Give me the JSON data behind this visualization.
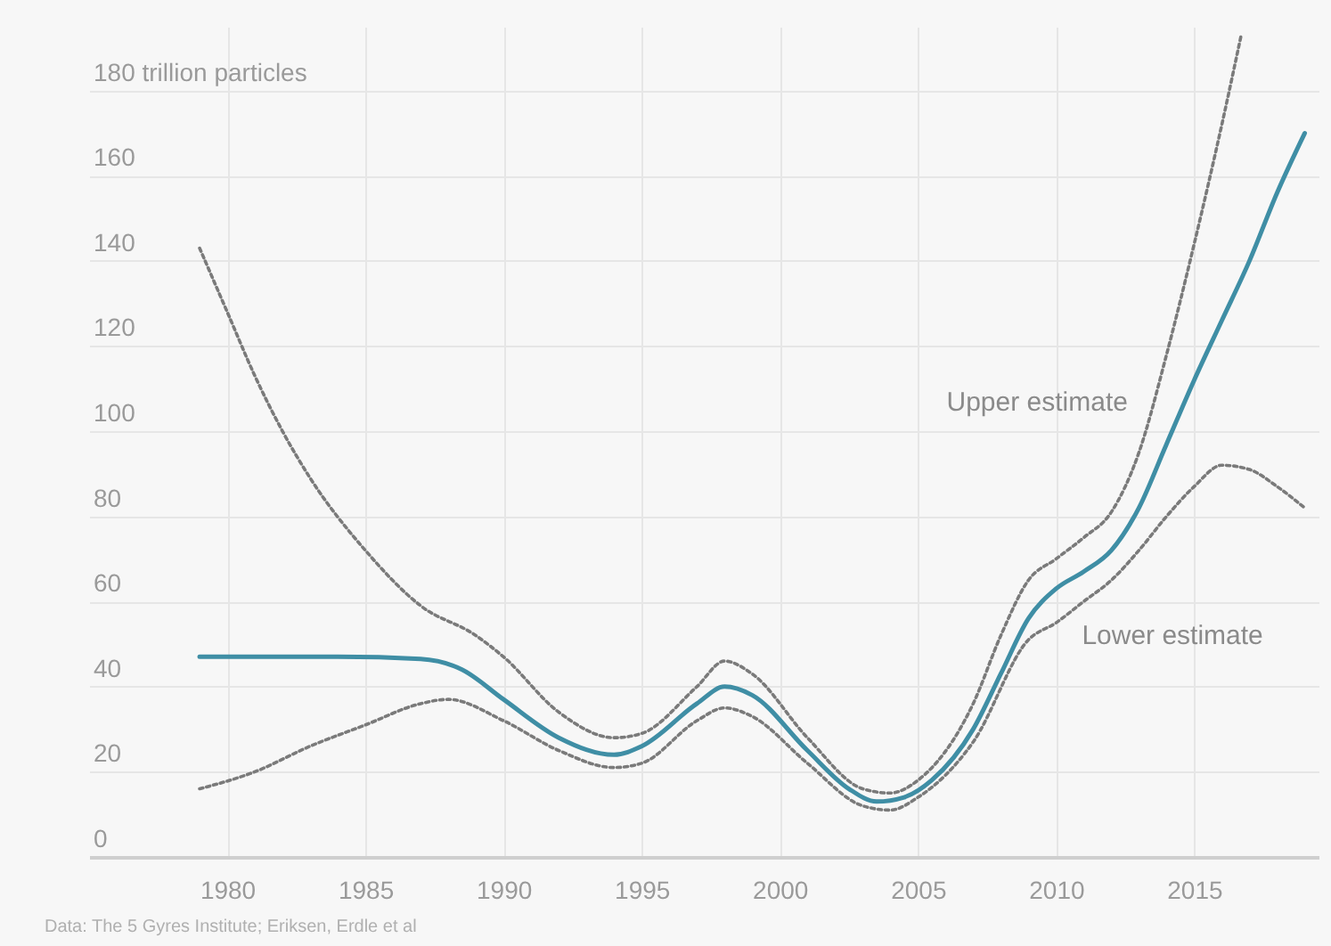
{
  "chart_data": {
    "type": "line",
    "xlim": [
      1975,
      2019.5
    ],
    "xticks": [
      1980,
      1985,
      1990,
      1995,
      2000,
      2005,
      2010,
      2015
    ],
    "ylim": [
      0,
      195
    ],
    "yticks": [
      0,
      20,
      40,
      60,
      80,
      100,
      120,
      140,
      160,
      {
        "value": 180,
        "label": "180 trillion particles"
      }
    ],
    "grid": true,
    "marker": "none",
    "annotations": [
      "Data: The 5 Gyres Institute; Eriksen, Erdle et al",
      {
        "text": "Upper estimate",
        "x": 2013.5,
        "y": 107
      },
      {
        "text": "Lower estimate",
        "x": 2009,
        "y": 52
      }
    ],
    "series": [
      {
        "color": "#7a7a7a",
        "line_style": "dotted",
        "x": [
          1979,
          1980,
          1981,
          1982,
          1983,
          1985,
          1987,
          1989,
          1990,
          1992,
          1994,
          1995,
          1997,
          1998,
          1999,
          2001,
          2003,
          2004,
          2005,
          2007,
          2008,
          2009,
          2010,
          2011,
          2012,
          2013,
          2014,
          2015,
          2016,
          2016.7
        ],
        "values": [
          143,
          128,
          113,
          100,
          89,
          72,
          59,
          52,
          47,
          34,
          28,
          29,
          40,
          46,
          43,
          28,
          16,
          15,
          18,
          36,
          52,
          65,
          70,
          75,
          81,
          95,
          118,
          144,
          172,
          193
        ]
      },
      {
        "color": "#7a7a7a",
        "line_style": "dotted",
        "x": [
          1979,
          1981,
          1983,
          1985,
          1987,
          1988,
          1990,
          1992,
          1994,
          1995,
          1997,
          1998,
          1999,
          2001,
          2003,
          2004,
          2005,
          2007,
          2009,
          2010,
          2011,
          2012,
          2013,
          2014,
          2015,
          2016,
          2017,
          2018,
          2019
        ],
        "values": [
          16,
          20,
          26,
          31,
          36,
          37,
          32,
          25,
          21,
          22,
          32,
          35,
          33,
          22,
          12,
          11,
          14,
          27,
          51,
          55,
          60,
          65,
          72,
          80,
          87,
          92,
          91,
          87,
          82
        ]
      },
      {
        "color": "#3f8ea5",
        "line_style": "solid",
        "x": [
          1979,
          1984,
          1987,
          1988.5,
          1990,
          1992,
          1994,
          1995,
          1997,
          1998,
          1999,
          2001,
          2002.5,
          2003.5,
          2004.5,
          2005.5,
          2007,
          2008,
          2009,
          2010,
          2011,
          2012,
          2013,
          2014,
          2015,
          2016,
          2017,
          2018,
          2019
        ],
        "values": [
          47,
          47,
          46.5,
          44,
          37,
          28,
          24,
          26,
          36,
          40,
          38,
          25,
          16,
          13,
          14,
          18,
          30,
          43,
          56,
          63,
          67,
          72,
          82,
          97,
          112,
          126,
          140,
          156,
          170
        ]
      }
    ]
  }
}
